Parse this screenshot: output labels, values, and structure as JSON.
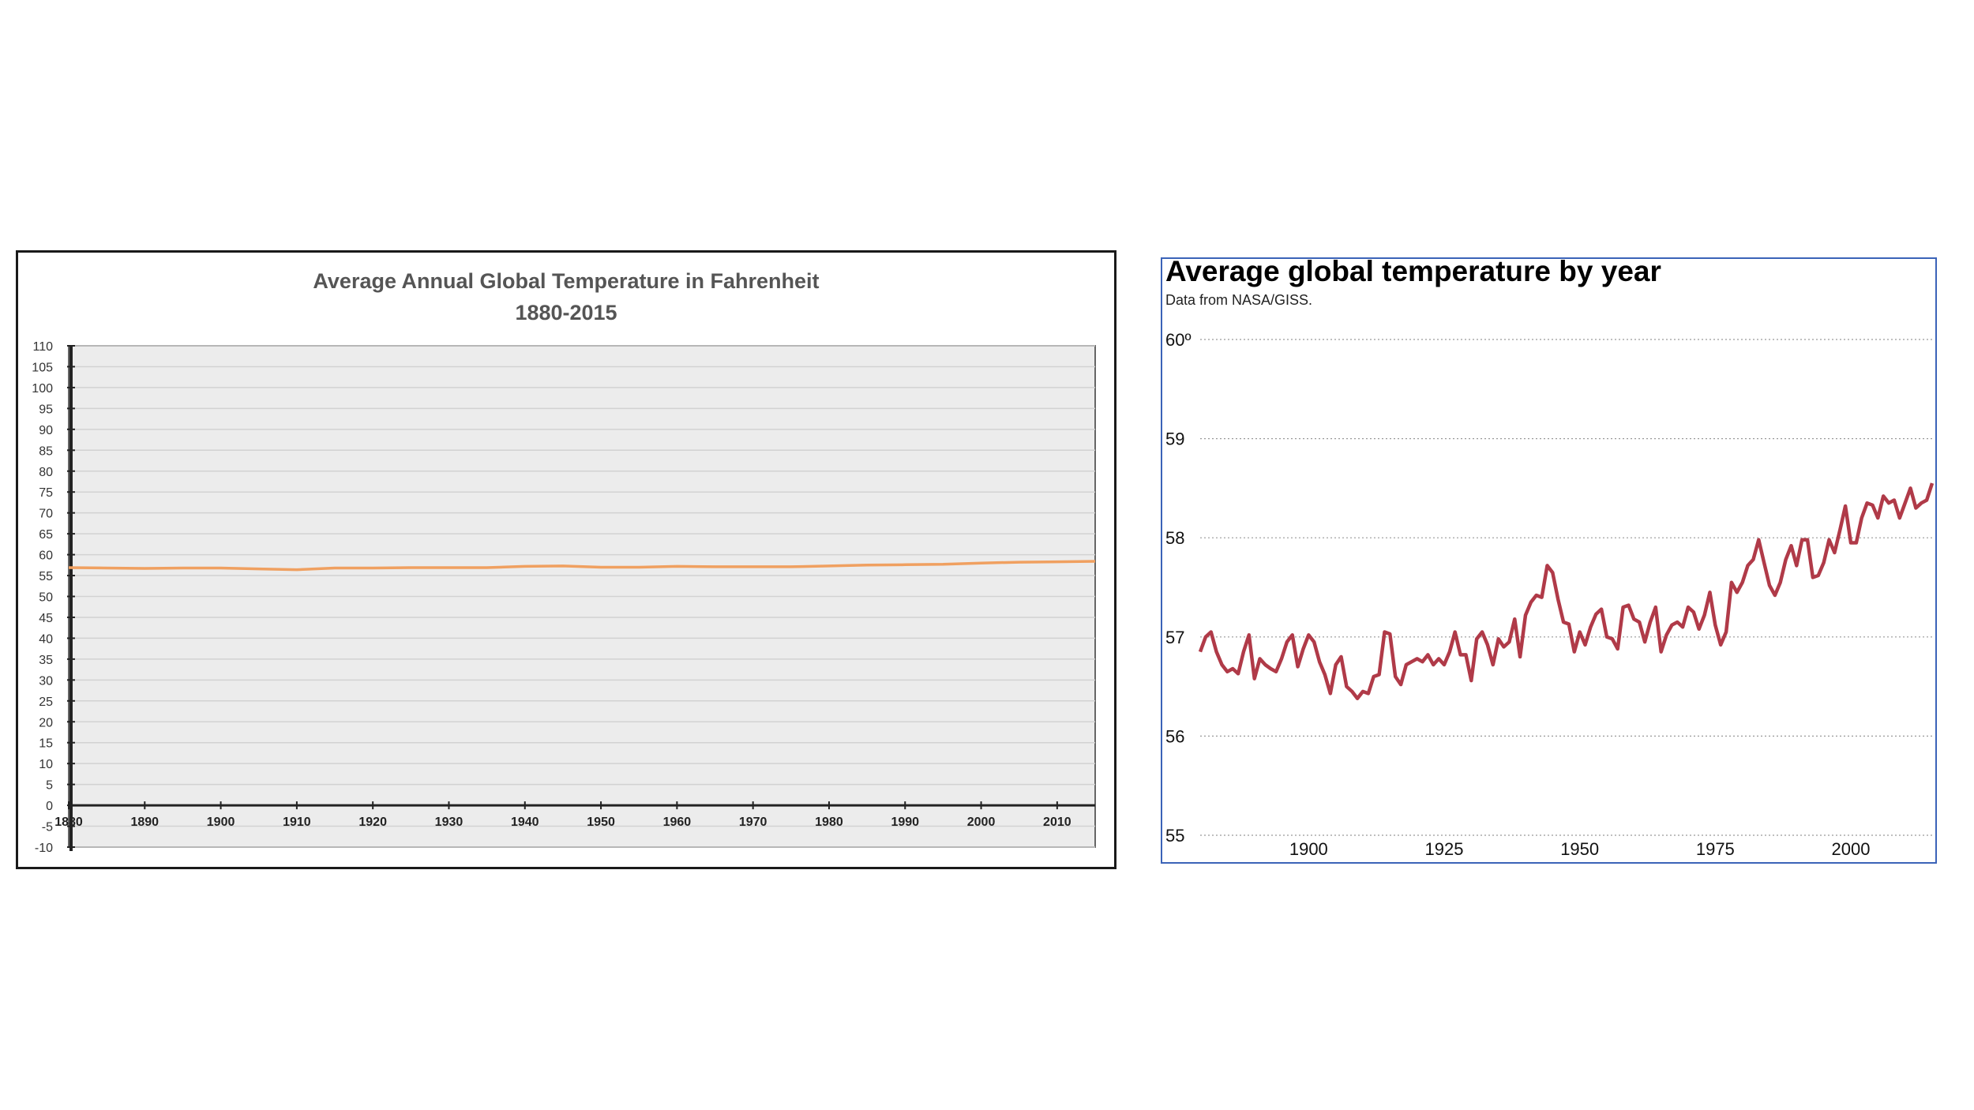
{
  "chart_data": [
    {
      "type": "line",
      "title": "Average Annual Global Temperature in Fahrenheit",
      "subtitle": "1880-2015",
      "ylim": [
        -10,
        110
      ],
      "y_ticks": [
        "-10",
        "-5",
        "0",
        "5",
        "10",
        "15",
        "20",
        "25",
        "30",
        "35",
        "40",
        "45",
        "50",
        "55",
        "60",
        "65",
        "70",
        "75",
        "80",
        "85",
        "90",
        "95",
        "100",
        "105",
        "110"
      ],
      "x_ticks": [
        "1880",
        "1890",
        "1900",
        "1910",
        "1920",
        "1930",
        "1940",
        "1950",
        "1960",
        "1970",
        "1980",
        "1990",
        "2000",
        "2010"
      ],
      "xlim": [
        1880,
        2015
      ],
      "grid": true,
      "line_color": "#f0a060",
      "x": [
        1880,
        1885,
        1890,
        1895,
        1900,
        1905,
        1910,
        1915,
        1920,
        1925,
        1930,
        1935,
        1940,
        1945,
        1950,
        1955,
        1960,
        1965,
        1970,
        1975,
        1980,
        1985,
        1990,
        1995,
        2000,
        2005,
        2010,
        2015
      ],
      "y": [
        56.9,
        56.8,
        56.7,
        56.8,
        56.8,
        56.6,
        56.4,
        56.8,
        56.8,
        56.9,
        56.9,
        56.9,
        57.2,
        57.3,
        57.0,
        57.0,
        57.2,
        57.1,
        57.1,
        57.1,
        57.3,
        57.5,
        57.6,
        57.7,
        58.0,
        58.2,
        58.3,
        58.4
      ]
    },
    {
      "type": "line",
      "title": "Average global temperature by year",
      "subtitle": "Data from NASA/GISS.",
      "ylim": [
        55,
        60
      ],
      "y_ticks": [
        "55",
        "56",
        "57",
        "58",
        "59",
        "60º"
      ],
      "x_ticks": [
        "1900",
        "1925",
        "1950",
        "1975",
        "2000"
      ],
      "xlim": [
        1880,
        2015
      ],
      "grid": true,
      "line_color": "#b03a48",
      "x": [
        1880,
        1881,
        1882,
        1883,
        1884,
        1885,
        1886,
        1887,
        1888,
        1889,
        1890,
        1891,
        1892,
        1893,
        1894,
        1895,
        1896,
        1897,
        1898,
        1899,
        1900,
        1901,
        1902,
        1903,
        1904,
        1905,
        1906,
        1907,
        1908,
        1909,
        1910,
        1911,
        1912,
        1913,
        1914,
        1915,
        1916,
        1917,
        1918,
        1919,
        1920,
        1921,
        1922,
        1923,
        1924,
        1925,
        1926,
        1927,
        1928,
        1929,
        1930,
        1931,
        1932,
        1933,
        1934,
        1935,
        1936,
        1937,
        1938,
        1939,
        1940,
        1941,
        1942,
        1943,
        1944,
        1945,
        1946,
        1947,
        1948,
        1949,
        1950,
        1951,
        1952,
        1953,
        1954,
        1955,
        1956,
        1957,
        1958,
        1959,
        1960,
        1961,
        1962,
        1963,
        1964,
        1965,
        1966,
        1967,
        1968,
        1969,
        1970,
        1971,
        1972,
        1973,
        1974,
        1975,
        1976,
        1977,
        1978,
        1979,
        1980,
        1981,
        1982,
        1983,
        1984,
        1985,
        1986,
        1987,
        1988,
        1989,
        1990,
        1991,
        1992,
        1993,
        1994,
        1995,
        1996,
        1997,
        1998,
        1999,
        2000,
        2001,
        2002,
        2003,
        2004,
        2005,
        2006,
        2007,
        2008,
        2009,
        2010,
        2011,
        2012,
        2013,
        2014,
        2015
      ],
      "y": [
        56.85,
        57.0,
        57.05,
        56.85,
        56.72,
        56.65,
        56.68,
        56.63,
        56.85,
        57.02,
        56.58,
        56.78,
        56.72,
        56.68,
        56.65,
        56.78,
        56.95,
        57.02,
        56.7,
        56.88,
        57.02,
        56.95,
        56.75,
        56.62,
        56.43,
        56.72,
        56.8,
        56.5,
        56.45,
        56.38,
        56.45,
        56.43,
        56.6,
        56.62,
        57.05,
        57.03,
        56.6,
        56.52,
        56.72,
        56.75,
        56.78,
        56.75,
        56.82,
        56.72,
        56.78,
        56.72,
        56.85,
        57.05,
        56.82,
        56.82,
        56.56,
        56.98,
        57.05,
        56.92,
        56.72,
        56.98,
        56.9,
        56.95,
        57.18,
        56.8,
        57.22,
        57.35,
        57.42,
        57.4,
        57.72,
        57.65,
        57.38,
        57.15,
        57.13,
        56.85,
        57.05,
        56.92,
        57.1,
        57.23,
        57.28,
        57.0,
        56.98,
        56.88,
        57.3,
        57.32,
        57.18,
        57.15,
        56.95,
        57.15,
        57.3,
        56.85,
        57.02,
        57.12,
        57.15,
        57.1,
        57.3,
        57.25,
        57.08,
        57.22,
        57.45,
        57.12,
        56.92,
        57.05,
        57.55,
        57.45,
        57.55,
        57.72,
        57.78,
        57.98,
        57.75,
        57.52,
        57.42,
        57.55,
        57.78,
        57.92,
        57.72,
        57.98,
        57.98,
        57.6,
        57.62,
        57.75,
        57.98,
        57.85,
        58.08,
        58.32,
        57.95,
        57.95,
        58.2,
        58.35,
        58.33,
        58.2,
        58.42,
        58.35,
        58.38,
        58.2,
        58.35,
        58.5,
        58.3,
        58.35,
        58.38,
        58.55
      ]
    }
  ]
}
